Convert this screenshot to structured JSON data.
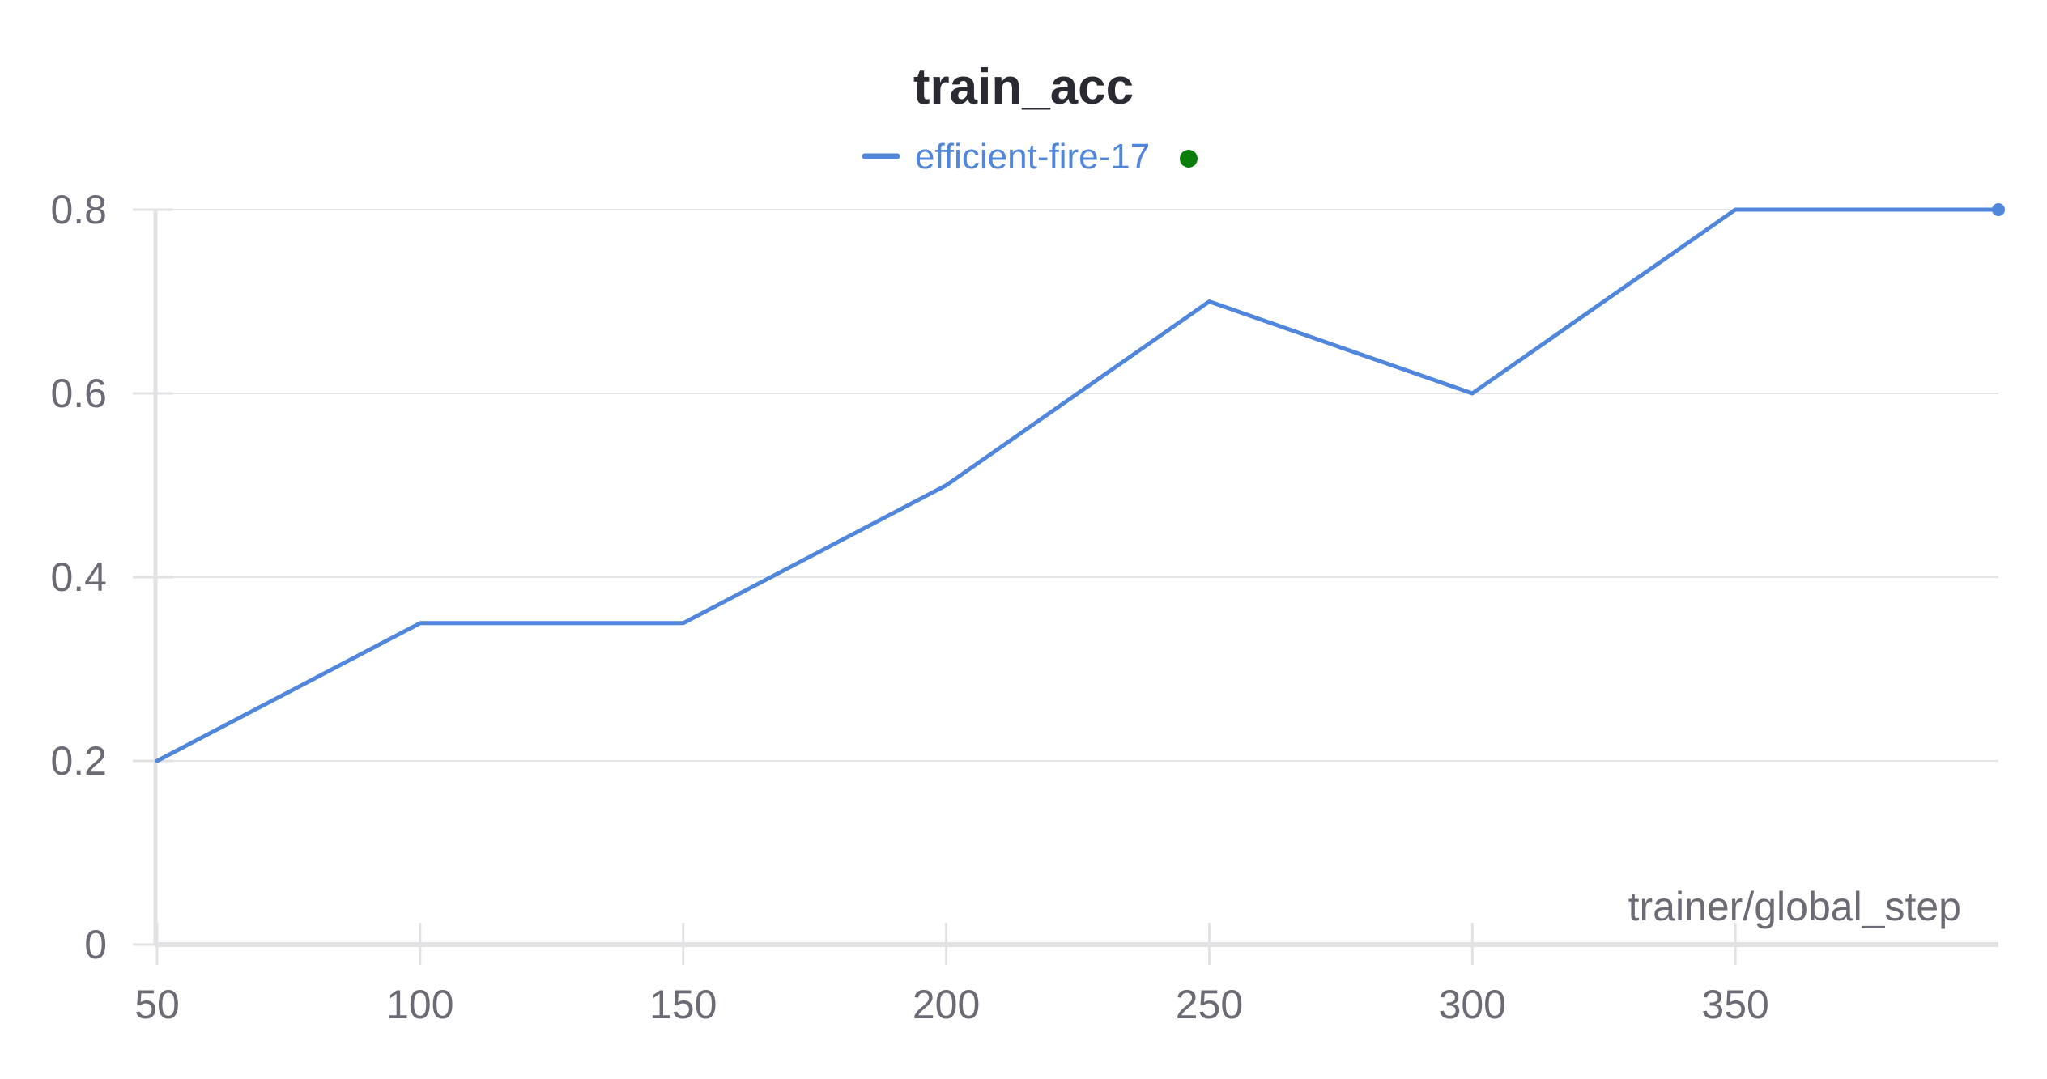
{
  "chart_data": {
    "type": "line",
    "title": "train_acc",
    "xlabel": "trainer/global_step",
    "ylabel": "",
    "x": [
      50,
      100,
      150,
      200,
      250,
      300,
      350,
      400
    ],
    "series": [
      {
        "name": "efficient-fire-17",
        "color": "#5087dc",
        "values": [
          0.2,
          0.35,
          0.35,
          0.5,
          0.7,
          0.6,
          0.8,
          0.8
        ]
      }
    ],
    "xlim": [
      50,
      400
    ],
    "ylim": [
      0,
      0.8
    ],
    "xticks": [
      50,
      100,
      150,
      200,
      250,
      300,
      350
    ],
    "xtick_labels": [
      "50",
      "100",
      "150",
      "200",
      "250",
      "300",
      "350"
    ],
    "yticks": [
      0,
      0.2,
      0.4,
      0.6,
      0.8
    ],
    "ytick_labels": [
      "0",
      "0.2",
      "0.4",
      "0.6",
      "0.8"
    ],
    "grid": true,
    "legend_position": "top-center",
    "legend_status_color": "#0a7d0a"
  }
}
